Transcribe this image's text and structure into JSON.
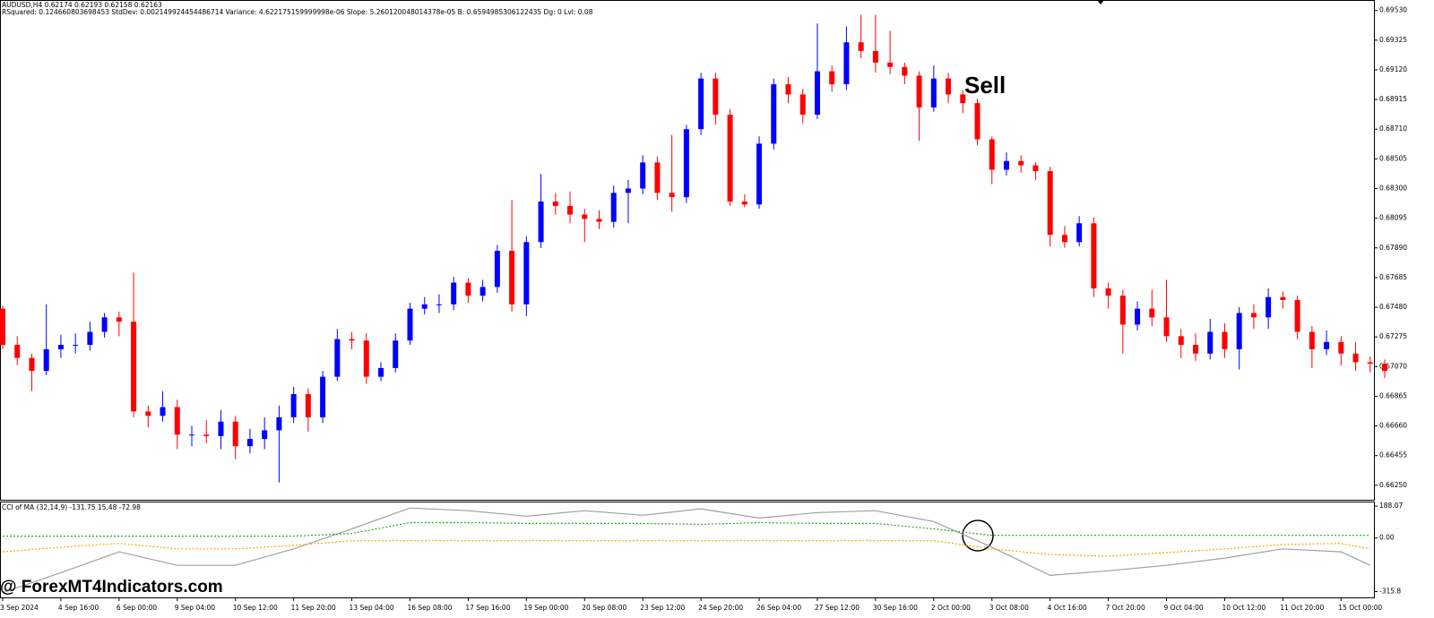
{
  "chart_data": [
    {
      "type": "candlestick",
      "title": "AUDUSD,H4  0.62174 0.62193 0.62158 0.62163",
      "subtitle": "RSquared: 0.124660803698453 StdDev: 0.002149924454486714 Variance: 4.622175159999998e-06 Slope: 5.260120048014378e-05 B: 0.6594985306122435 Dg: 0 Lvl: 0.08",
      "annotation": "Sell",
      "up_color": "#0000ff",
      "down_color": "#ff0000",
      "categories": [
        "3 Sep 2024",
        null,
        null,
        null,
        "4 Sep 16:00",
        null,
        null,
        null,
        "6 Sep 00:00",
        null,
        null,
        null,
        "9 Sep 04:00",
        null,
        null,
        null,
        "10 Sep 12:00",
        null,
        null,
        null,
        "11 Sep 20:00",
        null,
        null,
        null,
        "13 Sep 04:00",
        null,
        null,
        null,
        "16 Sep 08:00",
        null,
        null,
        null,
        "17 Sep 16:00",
        null,
        null,
        null,
        "19 Sep 00:00",
        null,
        null,
        null,
        "20 Sep 08:00",
        null,
        null,
        null,
        "23 Sep 12:00",
        null,
        null,
        null,
        "24 Sep 20:00",
        null,
        null,
        null,
        "26 Sep 04:00",
        null,
        null,
        null,
        "27 Sep 12:00",
        null,
        null,
        null,
        "30 Sep 16:00",
        null,
        null,
        null,
        "2 Oct 00:00",
        null,
        null,
        null,
        "3 Oct 08:00",
        null,
        null,
        null,
        "4 Oct 16:00",
        null,
        null,
        null,
        "7 Oct 20:00",
        null,
        null,
        null,
        "9 Oct 04:00",
        null,
        null,
        null,
        "10 Oct 12:00",
        null,
        null,
        null,
        "11 Oct 20:00",
        null,
        null,
        null,
        "15 Oct 00:00",
        null,
        null,
        null
      ],
      "ohlc": [
        [
          0.6747,
          0.6749,
          0.6719,
          0.6722
        ],
        [
          0.6722,
          0.6728,
          0.6708,
          0.6713
        ],
        [
          0.6713,
          0.6716,
          0.669,
          0.6704
        ],
        [
          0.6704,
          0.675,
          0.6701,
          0.6719
        ],
        [
          0.6719,
          0.6729,
          0.6713,
          0.6722
        ],
        [
          0.6722,
          0.673,
          0.6716,
          0.6722
        ],
        [
          0.6722,
          0.6738,
          0.6718,
          0.6731
        ],
        [
          0.6731,
          0.6744,
          0.6727,
          0.6741
        ],
        [
          0.6741,
          0.6745,
          0.6728,
          0.6738
        ],
        [
          0.6738,
          0.6772,
          0.6672,
          0.6676
        ],
        [
          0.6676,
          0.668,
          0.6665,
          0.6673
        ],
        [
          0.6673,
          0.669,
          0.6669,
          0.6679
        ],
        [
          0.6679,
          0.6684,
          0.665,
          0.666
        ],
        [
          0.666,
          0.6666,
          0.6652,
          0.666
        ],
        [
          0.666,
          0.667,
          0.6654,
          0.6659
        ],
        [
          0.6659,
          0.6677,
          0.665,
          0.6669
        ],
        [
          0.6669,
          0.6673,
          0.6643,
          0.6652
        ],
        [
          0.6652,
          0.6664,
          0.6647,
          0.6657
        ],
        [
          0.6657,
          0.6672,
          0.665,
          0.6663
        ],
        [
          0.6663,
          0.668,
          0.6627,
          0.6672
        ],
        [
          0.6672,
          0.6693,
          0.6668,
          0.6688
        ],
        [
          0.6688,
          0.6692,
          0.6662,
          0.6672
        ],
        [
          0.6672,
          0.6704,
          0.6668,
          0.67
        ],
        [
          0.67,
          0.6733,
          0.6697,
          0.6726
        ],
        [
          0.6726,
          0.6731,
          0.6719,
          0.6725
        ],
        [
          0.6725,
          0.673,
          0.6695,
          0.67
        ],
        [
          0.67,
          0.671,
          0.6697,
          0.6706
        ],
        [
          0.6706,
          0.673,
          0.6703,
          0.6725
        ],
        [
          0.6725,
          0.6751,
          0.6722,
          0.6747
        ],
        [
          0.6747,
          0.6755,
          0.6743,
          0.675
        ],
        [
          0.675,
          0.6757,
          0.6744,
          0.675
        ],
        [
          0.675,
          0.6769,
          0.6746,
          0.6765
        ],
        [
          0.6765,
          0.6768,
          0.6751,
          0.6756
        ],
        [
          0.6756,
          0.6767,
          0.6752,
          0.6762
        ],
        [
          0.6762,
          0.6791,
          0.6758,
          0.6787
        ],
        [
          0.6787,
          0.6822,
          0.6745,
          0.675
        ],
        [
          0.675,
          0.6797,
          0.6742,
          0.6793
        ],
        [
          0.6793,
          0.684,
          0.6789,
          0.6821
        ],
        [
          0.6821,
          0.6827,
          0.6812,
          0.6818
        ],
        [
          0.6818,
          0.6828,
          0.6806,
          0.6812
        ],
        [
          0.6812,
          0.6816,
          0.6793,
          0.6809
        ],
        [
          0.6809,
          0.6815,
          0.6802,
          0.6807
        ],
        [
          0.6807,
          0.6832,
          0.6803,
          0.6827
        ],
        [
          0.6827,
          0.6836,
          0.6806,
          0.683
        ],
        [
          0.683,
          0.6853,
          0.6826,
          0.6848
        ],
        [
          0.6848,
          0.6852,
          0.6822,
          0.6827
        ],
        [
          0.6827,
          0.6867,
          0.6814,
          0.6824
        ],
        [
          0.6824,
          0.6874,
          0.682,
          0.6871
        ],
        [
          0.6871,
          0.691,
          0.6867,
          0.6906
        ],
        [
          0.6906,
          0.691,
          0.6874,
          0.6881
        ],
        [
          0.6881,
          0.6885,
          0.6818,
          0.6821
        ],
        [
          0.6821,
          0.6826,
          0.6817,
          0.6819
        ],
        [
          0.6819,
          0.6866,
          0.6816,
          0.6861
        ],
        [
          0.6861,
          0.6906,
          0.6857,
          0.6902
        ],
        [
          0.6902,
          0.6907,
          0.6889,
          0.6895
        ],
        [
          0.6895,
          0.6899,
          0.6875,
          0.6881
        ],
        [
          0.6881,
          0.6944,
          0.6878,
          0.6911
        ],
        [
          0.6911,
          0.6915,
          0.6897,
          0.6902
        ],
        [
          0.6902,
          0.6942,
          0.6898,
          0.6931
        ],
        [
          0.6931,
          0.695,
          0.692,
          0.6925
        ],
        [
          0.6925,
          0.695,
          0.691,
          0.6917
        ],
        [
          0.6917,
          0.6939,
          0.6909,
          0.6914
        ],
        [
          0.6914,
          0.6917,
          0.6902,
          0.6908
        ],
        [
          0.6908,
          0.6911,
          0.6863,
          0.6886
        ],
        [
          0.6886,
          0.6915,
          0.6883,
          0.6906
        ],
        [
          0.6906,
          0.691,
          0.6889,
          0.6895
        ],
        [
          0.6895,
          0.6898,
          0.6882,
          0.6889
        ],
        [
          0.6889,
          0.6892,
          0.686,
          0.6864
        ],
        [
          0.6864,
          0.6866,
          0.6833,
          0.6843
        ],
        [
          0.6843,
          0.6855,
          0.6839,
          0.6849
        ],
        [
          0.6849,
          0.6853,
          0.6841,
          0.6846
        ],
        [
          0.6846,
          0.6848,
          0.6836,
          0.6842
        ],
        [
          0.6842,
          0.6845,
          0.679,
          0.6798
        ],
        [
          0.6798,
          0.6804,
          0.6789,
          0.6793
        ],
        [
          0.6793,
          0.6811,
          0.679,
          0.6806
        ],
        [
          0.6806,
          0.681,
          0.6755,
          0.6761
        ],
        [
          0.6761,
          0.6765,
          0.6747,
          0.6756
        ],
        [
          0.6756,
          0.676,
          0.6716,
          0.6736
        ],
        [
          0.6736,
          0.6752,
          0.6732,
          0.6747
        ],
        [
          0.6747,
          0.676,
          0.6735,
          0.6741
        ],
        [
          0.6741,
          0.6767,
          0.6724,
          0.6728
        ],
        [
          0.6728,
          0.6733,
          0.6713,
          0.6722
        ],
        [
          0.6722,
          0.673,
          0.6711,
          0.6716
        ],
        [
          0.6716,
          0.674,
          0.6712,
          0.6731
        ],
        [
          0.6731,
          0.6737,
          0.6713,
          0.6719
        ],
        [
          0.6719,
          0.6748,
          0.6705,
          0.6744
        ],
        [
          0.6744,
          0.675,
          0.6733,
          0.6741
        ],
        [
          0.6741,
          0.6761,
          0.6733,
          0.6755
        ],
        [
          0.6755,
          0.6759,
          0.6747,
          0.6753
        ],
        [
          0.6753,
          0.6756,
          0.6726,
          0.6731
        ],
        [
          0.6731,
          0.6735,
          0.6706,
          0.6719
        ],
        [
          0.6719,
          0.6732,
          0.6715,
          0.6724
        ],
        [
          0.6724,
          0.6728,
          0.6708,
          0.6716
        ],
        [
          0.6716,
          0.6724,
          0.6704,
          0.671
        ],
        [
          0.671,
          0.6714,
          0.6703,
          0.6709
        ],
        [
          0.6709,
          0.6712,
          0.6699,
          0.6704
        ]
      ],
      "ylim": [
        0.6615,
        0.6959
      ],
      "yticks": [
        {
          "value": 0.6953,
          "label": "0.69530"
        },
        {
          "value": 0.69325,
          "label": "0.69325"
        },
        {
          "value": 0.6912,
          "label": "0.69120"
        },
        {
          "value": 0.68915,
          "label": "0.68915"
        },
        {
          "value": 0.6871,
          "label": "0.68710"
        },
        {
          "value": 0.68505,
          "label": "0.68505"
        },
        {
          "value": 0.683,
          "label": "0.68300"
        },
        {
          "value": 0.68095,
          "label": "0.68095"
        },
        {
          "value": 0.6789,
          "label": "0.67890"
        },
        {
          "value": 0.67685,
          "label": "0.67685"
        },
        {
          "value": 0.6748,
          "label": "0.67480"
        },
        {
          "value": 0.67275,
          "label": "0.67275"
        },
        {
          "value": 0.6707,
          "label": "0.67070"
        },
        {
          "value": 0.66865,
          "label": "0.66865"
        },
        {
          "value": 0.6666,
          "label": "0.66660"
        },
        {
          "value": 0.66455,
          "label": "0.66455"
        },
        {
          "value": 0.6625,
          "label": "0.66250"
        }
      ]
    },
    {
      "type": "line",
      "title": "CCI of MA (32,14,9) -131.75 15.48 -72.98",
      "x": [
        0,
        4,
        8,
        12,
        16,
        20,
        24,
        28,
        32,
        36,
        40,
        44,
        48,
        52,
        56,
        60,
        64,
        68,
        72,
        76,
        80,
        84,
        88,
        92,
        94
      ],
      "series": [
        {
          "color": "#a0a0a0",
          "style": "solid",
          "values": [
            -322,
            -204,
            -81,
            -161,
            -161,
            -64,
            54,
            177,
            161,
            129,
            161,
            134,
            172,
            118,
            150,
            161,
            97,
            -54,
            -220,
            -193,
            -161,
            -118,
            -64,
            -81,
            -161
          ]
        },
        {
          "color": "#22aa22",
          "style": "dotted",
          "values": [
            11,
            11,
            11,
            11,
            11,
            11,
            27,
            91,
            91,
            86,
            86,
            86,
            81,
            91,
            86,
            86,
            54,
            16,
            16,
            16,
            16,
            16,
            16,
            16,
            16
          ]
        },
        {
          "color": "#ffa500",
          "style": "dotted",
          "values": [
            -81,
            -54,
            -32,
            -64,
            -64,
            -43,
            -16,
            -16,
            -16,
            -16,
            -16,
            -16,
            -16,
            -16,
            -16,
            -16,
            -16,
            -64,
            -97,
            -107,
            -86,
            -64,
            -38,
            -32,
            -64
          ]
        }
      ],
      "ylim": [
        -350,
        215
      ],
      "yticks": [
        188.07,
        {
          "value": 0,
          "label": "0.00"
        },
        -315.8
      ]
    }
  ],
  "watermark": "@ ForexMT4Indicators.com"
}
